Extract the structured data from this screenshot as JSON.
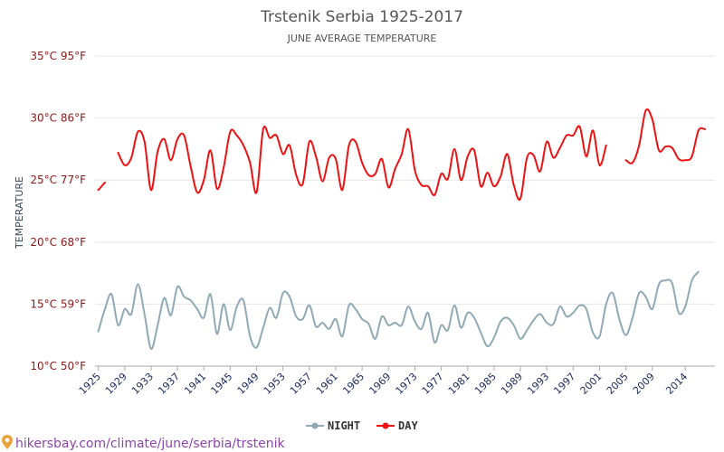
{
  "chart_data": {
    "type": "line",
    "title": "Trstenik Serbia 1925-2017",
    "subtitle": "JUNE AVERAGE TEMPERATURE",
    "ylabel": "TEMPERATURE",
    "xlim": [
      1924.5,
      2018.5
    ],
    "ylim": [
      10,
      35
    ],
    "yticks": [
      {
        "value": 10,
        "label": "10°C 50°F"
      },
      {
        "value": 15,
        "label": "15°C 59°F"
      },
      {
        "value": 20,
        "label": "20°C 68°F"
      },
      {
        "value": 25,
        "label": "25°C 77°F"
      },
      {
        "value": 30,
        "label": "30°C 86°F"
      },
      {
        "value": 35,
        "label": "35°C 95°F"
      }
    ],
    "xticks": [
      "1925",
      "1929",
      "1933",
      "1937",
      "1941",
      "1945",
      "1949",
      "1953",
      "1957",
      "1961",
      "1965",
      "1969",
      "1973",
      "1977",
      "1981",
      "1985",
      "1989",
      "1993",
      "1997",
      "2001",
      "2005",
      "2009",
      "2014"
    ],
    "grid": true,
    "legend_position": "bottom",
    "series": [
      {
        "name": "NIGHT",
        "color": "#90aab5",
        "points": [
          [
            1925,
            12.8
          ],
          [
            1926,
            14.6
          ],
          [
            1927,
            15.8
          ],
          [
            1928,
            13.3
          ],
          [
            1929,
            14.6
          ],
          [
            1930,
            14.2
          ],
          [
            1931,
            16.6
          ],
          [
            1932,
            14.2
          ],
          [
            1933,
            11.4
          ],
          [
            1934,
            13.3
          ],
          [
            1935,
            15.5
          ],
          [
            1936,
            14.1
          ],
          [
            1937,
            16.4
          ],
          [
            1938,
            15.6
          ],
          [
            1939,
            15.3
          ],
          [
            1940,
            14.6
          ],
          [
            1941,
            13.9
          ],
          [
            1942,
            15.8
          ],
          [
            1943,
            12.6
          ],
          [
            1944,
            15.0
          ],
          [
            1945,
            12.9
          ],
          [
            1946,
            14.8
          ],
          [
            1947,
            15.3
          ],
          [
            1948,
            12.4
          ],
          [
            1949,
            11.5
          ],
          [
            1950,
            13.1
          ],
          [
            1951,
            14.7
          ],
          [
            1952,
            13.9
          ],
          [
            1953,
            15.9
          ],
          [
            1954,
            15.6
          ],
          [
            1955,
            14.0
          ],
          [
            1956,
            13.8
          ],
          [
            1957,
            14.9
          ],
          [
            1958,
            13.2
          ],
          [
            1959,
            13.5
          ],
          [
            1960,
            13.0
          ],
          [
            1961,
            13.8
          ],
          [
            1962,
            12.4
          ],
          [
            1963,
            14.9
          ],
          [
            1964,
            14.6
          ],
          [
            1965,
            13.8
          ],
          [
            1966,
            13.4
          ],
          [
            1967,
            12.2
          ],
          [
            1968,
            14.0
          ],
          [
            1969,
            13.3
          ],
          [
            1970,
            13.5
          ],
          [
            1971,
            13.3
          ],
          [
            1972,
            14.8
          ],
          [
            1973,
            13.6
          ],
          [
            1974,
            13.0
          ],
          [
            1975,
            14.3
          ],
          [
            1976,
            11.9
          ],
          [
            1977,
            13.3
          ],
          [
            1978,
            12.9
          ],
          [
            1979,
            14.9
          ],
          [
            1980,
            13.1
          ],
          [
            1981,
            14.3
          ],
          [
            1982,
            13.9
          ],
          [
            1983,
            12.7
          ],
          [
            1984,
            11.6
          ],
          [
            1985,
            12.3
          ],
          [
            1986,
            13.6
          ],
          [
            1987,
            13.9
          ],
          [
            1988,
            13.3
          ],
          [
            1989,
            12.2
          ],
          [
            1990,
            12.9
          ],
          [
            1991,
            13.7
          ],
          [
            1992,
            14.2
          ],
          [
            1993,
            13.5
          ],
          [
            1994,
            13.4
          ],
          [
            1995,
            14.8
          ],
          [
            1996,
            14.0
          ],
          [
            1997,
            14.3
          ],
          [
            1998,
            14.9
          ],
          [
            1999,
            14.6
          ],
          [
            2000,
            12.7
          ],
          [
            2001,
            12.4
          ],
          [
            2002,
            15.0
          ],
          [
            2003,
            15.9
          ],
          [
            2004,
            13.8
          ],
          [
            2005,
            12.5
          ],
          [
            2006,
            13.9
          ],
          [
            2007,
            15.9
          ],
          [
            2008,
            15.6
          ],
          [
            2009,
            14.6
          ],
          [
            2010,
            16.6
          ],
          [
            2011,
            16.9
          ],
          [
            2012,
            16.7
          ],
          [
            2013,
            14.3
          ],
          [
            2014,
            14.8
          ],
          [
            2015,
            16.9
          ],
          [
            2016,
            17.6
          ]
        ]
      },
      {
        "name": "DAY",
        "color": "#ee1111",
        "points": [
          [
            1925,
            24.2
          ],
          [
            1926,
            24.8
          ],
          [
            1927,
            null
          ],
          [
            1928,
            27.2
          ],
          [
            1929,
            26.2
          ],
          [
            1930,
            26.8
          ],
          [
            1931,
            28.9
          ],
          [
            1932,
            28.1
          ],
          [
            1933,
            24.2
          ],
          [
            1934,
            27.3
          ],
          [
            1935,
            28.3
          ],
          [
            1936,
            26.6
          ],
          [
            1937,
            28.3
          ],
          [
            1938,
            28.6
          ],
          [
            1939,
            26.1
          ],
          [
            1940,
            24.0
          ],
          [
            1941,
            25.0
          ],
          [
            1942,
            27.4
          ],
          [
            1943,
            24.3
          ],
          [
            1944,
            26.0
          ],
          [
            1945,
            28.9
          ],
          [
            1946,
            28.6
          ],
          [
            1947,
            27.8
          ],
          [
            1948,
            26.4
          ],
          [
            1949,
            24.0
          ],
          [
            1950,
            29.1
          ],
          [
            1951,
            28.4
          ],
          [
            1952,
            28.6
          ],
          [
            1953,
            27.1
          ],
          [
            1954,
            27.8
          ],
          [
            1955,
            25.4
          ],
          [
            1956,
            24.7
          ],
          [
            1957,
            28.1
          ],
          [
            1958,
            26.9
          ],
          [
            1959,
            24.9
          ],
          [
            1960,
            26.8
          ],
          [
            1961,
            26.7
          ],
          [
            1962,
            24.2
          ],
          [
            1963,
            27.8
          ],
          [
            1964,
            28.1
          ],
          [
            1965,
            26.4
          ],
          [
            1966,
            25.4
          ],
          [
            1967,
            25.5
          ],
          [
            1968,
            26.7
          ],
          [
            1969,
            24.4
          ],
          [
            1970,
            25.9
          ],
          [
            1971,
            27.1
          ],
          [
            1972,
            29.1
          ],
          [
            1973,
            25.8
          ],
          [
            1974,
            24.6
          ],
          [
            1975,
            24.5
          ],
          [
            1976,
            23.8
          ],
          [
            1977,
            25.5
          ],
          [
            1978,
            25.1
          ],
          [
            1979,
            27.5
          ],
          [
            1980,
            25.0
          ],
          [
            1981,
            26.9
          ],
          [
            1982,
            27.4
          ],
          [
            1983,
            24.5
          ],
          [
            1984,
            25.6
          ],
          [
            1985,
            24.5
          ],
          [
            1986,
            25.3
          ],
          [
            1987,
            27.1
          ],
          [
            1988,
            24.6
          ],
          [
            1989,
            23.5
          ],
          [
            1990,
            26.8
          ],
          [
            1991,
            27.0
          ],
          [
            1992,
            25.7
          ],
          [
            1993,
            28.1
          ],
          [
            1994,
            26.8
          ],
          [
            1995,
            27.6
          ],
          [
            1996,
            28.6
          ],
          [
            1997,
            28.6
          ],
          [
            1998,
            29.3
          ],
          [
            1999,
            26.9
          ],
          [
            2000,
            29.0
          ],
          [
            2001,
            26.2
          ],
          [
            2002,
            27.8
          ],
          [
            2003,
            null
          ],
          [
            2004,
            null
          ],
          [
            2005,
            26.6
          ],
          [
            2006,
            26.4
          ],
          [
            2007,
            27.8
          ],
          [
            2008,
            30.6
          ],
          [
            2009,
            29.9
          ],
          [
            2010,
            27.4
          ],
          [
            2011,
            27.7
          ],
          [
            2012,
            27.6
          ],
          [
            2013,
            26.7
          ],
          [
            2014,
            26.6
          ],
          [
            2015,
            26.9
          ],
          [
            2016,
            29.0
          ],
          [
            2017,
            29.1
          ]
        ]
      }
    ]
  },
  "legend": {
    "night_label": "NIGHT",
    "day_label": "DAY"
  },
  "source": {
    "text": "hikersbay.com/climate/june/serbia/trstenik",
    "icon": "location-pin-icon"
  }
}
